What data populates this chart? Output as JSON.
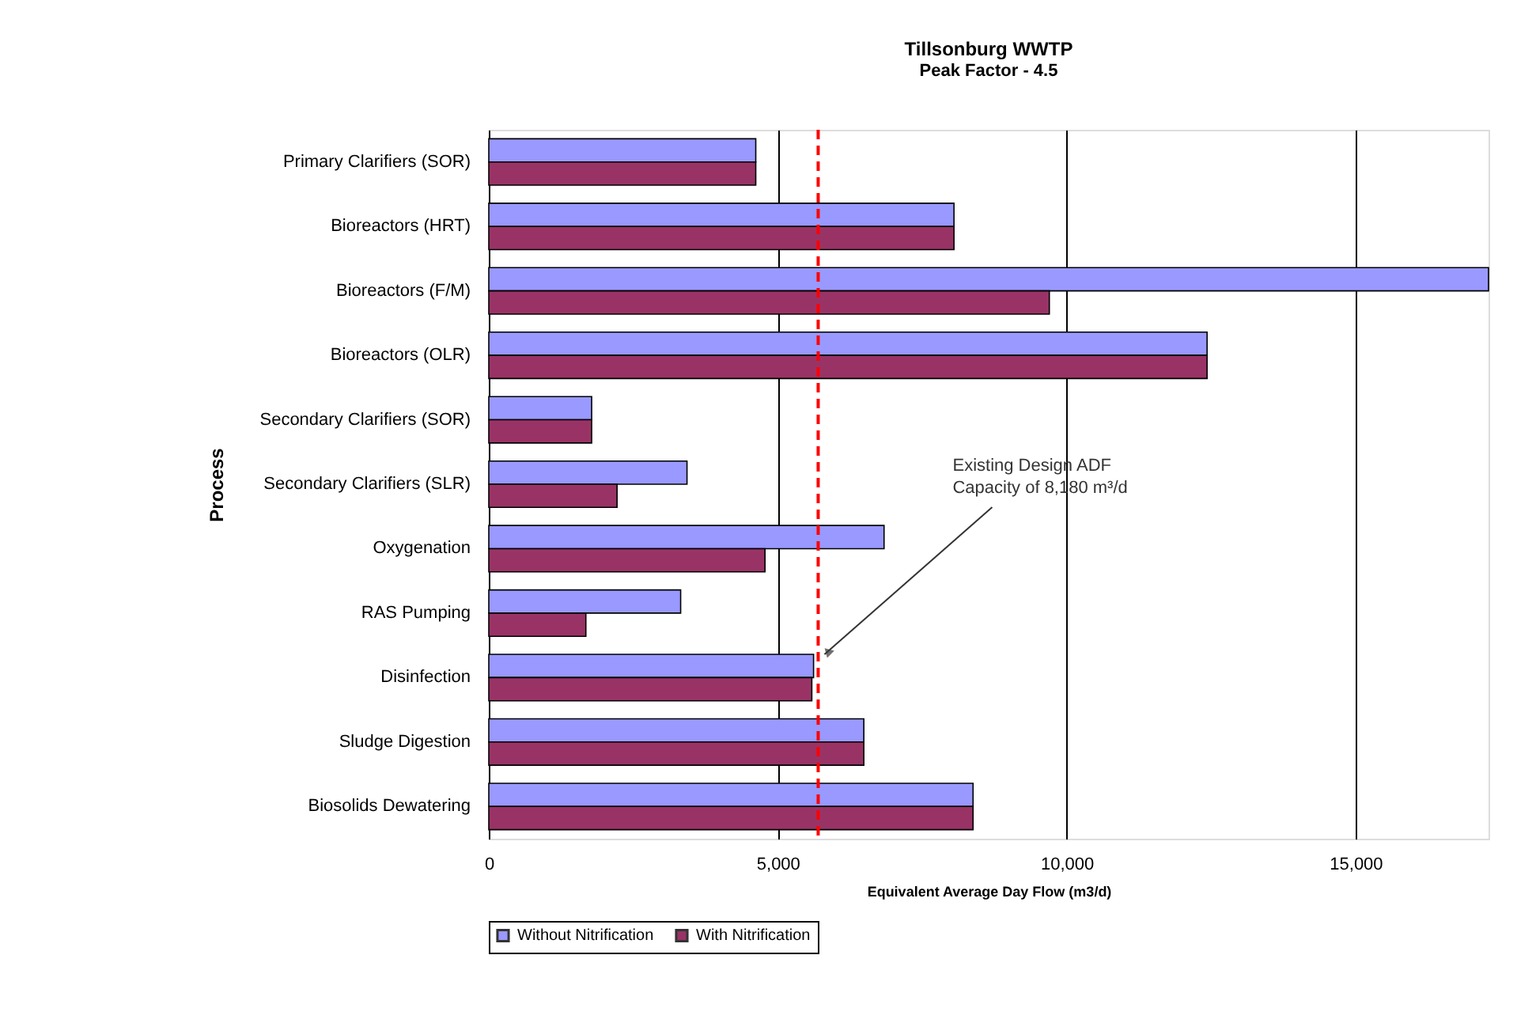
{
  "chart_data": {
    "type": "bar",
    "orientation": "horizontal",
    "title": "Tillsonburg WWTP",
    "subtitle": "Peak Factor - 4.5",
    "xlabel": "Equivalent Average Day Flow (m3/d)",
    "ylabel": "Process",
    "categories": [
      "Primary Clarifiers (SOR)",
      "Bioreactors (HRT)",
      "Bioreactors (F/M)",
      "Bioreactors (OLR)",
      "Secondary Clarifiers (SOR)",
      "Secondary Clarifiers (SLR)",
      "Oxygenation",
      "RAS Pumping",
      "Disinfection",
      "Sludge Digestion",
      "Biosolids Dewatering"
    ],
    "series": [
      {
        "name": "Without Nitrification",
        "color": "#9999ff",
        "values": [
          4620,
          8050,
          17300,
          12430,
          1780,
          3430,
          6840,
          3320,
          5620,
          6490,
          8380
        ]
      },
      {
        "name": "With Nitrification",
        "color": "#993366",
        "values": [
          4620,
          8050,
          9700,
          12430,
          1780,
          2220,
          4780,
          1680,
          5590,
          6490,
          8380
        ]
      }
    ],
    "xlim": [
      0,
      17300
    ],
    "xticks": [
      0,
      {
        "value": 5000,
        "label": "5,000"
      },
      {
        "value": 10000,
        "label": "10,000"
      },
      {
        "value": 15000,
        "label": "15,000"
      }
    ],
    "grid": "x",
    "legend": "bottom",
    "ref_lines": [
      {
        "axis": "x",
        "value": 5700,
        "color": "#ff0000",
        "line_style": "dashed",
        "label": "Existing Design ADF\nCapacity of 8,180 m³/d"
      }
    ]
  }
}
